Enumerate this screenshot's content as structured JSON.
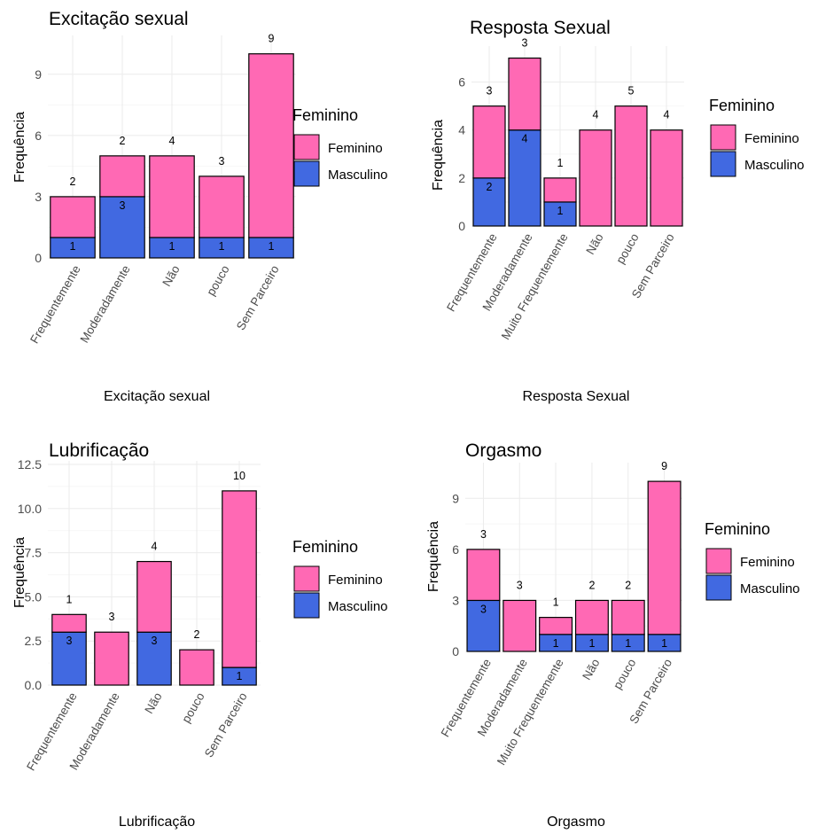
{
  "colors": {
    "Feminino": "#ff69b4",
    "Masculino": "#4169e1"
  },
  "chart_data": [
    {
      "type": "bar",
      "stacked": true,
      "title": "Excitação sexual",
      "xlabel": "Excitação sexual",
      "ylabel": "Frequência",
      "categories": [
        "Frequentemente",
        "Moderadamente",
        "Não",
        "pouco",
        "Sem Parceiro"
      ],
      "series": [
        {
          "name": "Feminino",
          "values": [
            2,
            2,
            4,
            3,
            9
          ]
        },
        {
          "name": "Masculino",
          "values": [
            1,
            3,
            1,
            1,
            1
          ]
        }
      ],
      "yticks": [
        0,
        3,
        6,
        9
      ],
      "ytick_labels": [
        "0",
        "3",
        "6",
        "9"
      ],
      "ylim": [
        0,
        10.9
      ],
      "legend": {
        "title": "Feminino",
        "entries": [
          "Feminino",
          "Masculino"
        ],
        "position": "right"
      },
      "grid": true
    },
    {
      "type": "bar",
      "stacked": true,
      "title": "Resposta Sexual",
      "xlabel": "Resposta Sexual",
      "ylabel": "Frequência",
      "categories": [
        "Frequentemente",
        "Moderadamente",
        "Muito Frequentemente",
        "Não",
        "pouco",
        "Sem Parceiro"
      ],
      "series": [
        {
          "name": "Feminino",
          "values": [
            3,
            3,
            1,
            4,
            5,
            4
          ]
        },
        {
          "name": "Masculino",
          "values": [
            2,
            4,
            1,
            0,
            0,
            0
          ]
        }
      ],
      "yticks": [
        0,
        2,
        4,
        6
      ],
      "ytick_labels": [
        "0",
        "2",
        "4",
        "6"
      ],
      "ylim": [
        0,
        7.5
      ],
      "legend": {
        "title": "Feminino",
        "entries": [
          "Feminino",
          "Masculino"
        ],
        "position": "right"
      },
      "grid": true
    },
    {
      "type": "bar",
      "stacked": true,
      "title": "Lubrificação",
      "xlabel": "Lubrificação",
      "ylabel": "Frequência",
      "categories": [
        "Frequentemente",
        "Moderadamente",
        "Não",
        "pouco",
        "Sem Parceiro"
      ],
      "series": [
        {
          "name": "Feminino",
          "values": [
            1,
            3,
            4,
            2,
            10
          ]
        },
        {
          "name": "Masculino",
          "values": [
            3,
            0,
            3,
            0,
            1
          ]
        }
      ],
      "yticks": [
        0,
        2.5,
        5,
        7.5,
        10,
        12.5
      ],
      "ytick_labels": [
        "0.0",
        "2.5",
        "5.0",
        "7.5",
        "10.0",
        "12.5"
      ],
      "ylim": [
        0,
        12.7
      ],
      "legend": {
        "title": "Feminino",
        "entries": [
          "Feminino",
          "Masculino"
        ],
        "position": "right"
      },
      "grid": true
    },
    {
      "type": "bar",
      "stacked": true,
      "title": "Orgasmo",
      "xlabel": "Orgasmo",
      "ylabel": "Frequência",
      "categories": [
        "Frequentemente",
        "Moderadamente",
        "Muito Frequentemente",
        "Não",
        "pouco",
        "Sem Parceiro"
      ],
      "series": [
        {
          "name": "Feminino",
          "values": [
            3,
            3,
            1,
            2,
            2,
            9
          ]
        },
        {
          "name": "Masculino",
          "values": [
            3,
            0,
            1,
            1,
            1,
            1
          ]
        }
      ],
      "yticks": [
        0,
        3,
        6,
        9
      ],
      "ytick_labels": [
        "0",
        "3",
        "6",
        "9"
      ],
      "ylim": [
        0,
        11.1
      ],
      "legend": {
        "title": "Feminino",
        "entries": [
          "Feminino",
          "Masculino"
        ],
        "position": "right"
      },
      "grid": true
    }
  ]
}
